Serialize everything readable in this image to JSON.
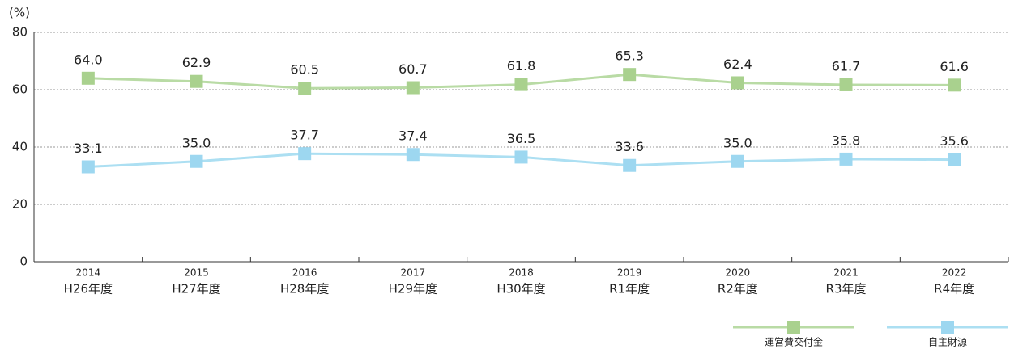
{
  "chart_data": {
    "type": "line",
    "y_label": "(%)",
    "categories": [
      "2014",
      "2015",
      "2016",
      "2017",
      "2018",
      "2019",
      "2020",
      "2021",
      "2022"
    ],
    "category_sublabels": [
      "H26年度",
      "H27年度",
      "H28年度",
      "H29年度",
      "H30年度",
      "R1年度",
      "R2年度",
      "R3年度",
      "R4年度"
    ],
    "series": [
      {
        "name": "運営費交付金",
        "color": "#a9d18e",
        "line_color": "#b9dba5",
        "values": [
          64,
          62.9,
          60.5,
          60.7,
          61.8,
          65.3,
          62.4,
          61.7,
          61.6
        ],
        "value_labels": [
          "64.0",
          "62.9",
          "60.5",
          "60.7",
          "61.8",
          "65.3",
          "62.4",
          "61.7",
          "61.6"
        ]
      },
      {
        "name": "自主財源",
        "color": "#9dd7f0",
        "line_color": "#acdff2",
        "values": [
          33.1,
          35,
          37.7,
          37.4,
          36.5,
          33.6,
          35,
          35.8,
          35.6
        ],
        "value_labels": [
          "33.1",
          "35.0",
          "37.7",
          "37.4",
          "36.5",
          "33.6",
          "35.0",
          "35.8",
          "35.6"
        ]
      }
    ],
    "ylim": [
      0,
      80
    ],
    "yticks": [
      0,
      20,
      40,
      60,
      80
    ],
    "grid": true,
    "legend": "bottom-right"
  }
}
